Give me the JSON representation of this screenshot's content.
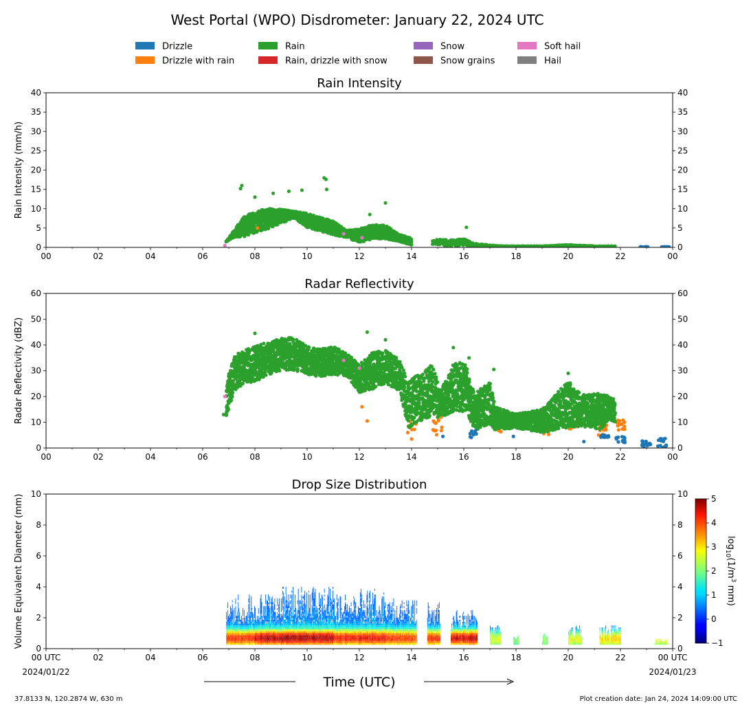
{
  "figure": {
    "title": "West Portal (WPO) Disdrometer: January 22, 2024 UTC",
    "xlabel": "Time (UTC)",
    "footer_left": "37.8133 N, 120.2874 W, 630 m",
    "footer_right": "Plot creation date: Jan 24, 2024 14:09:00 UTC",
    "x_tick_labels": [
      "00",
      "02",
      "04",
      "06",
      "08",
      "10",
      "12",
      "14",
      "16",
      "18",
      "20",
      "22",
      "00"
    ],
    "x_tick_labels_bottom": [
      "00 UTC",
      "02",
      "04",
      "06",
      "08",
      "10",
      "12",
      "14",
      "16",
      "18",
      "20",
      "22",
      "00 UTC"
    ],
    "x_start_date": "2024/01/22",
    "x_end_date": "2024/01/23"
  },
  "legend": {
    "placement": "top-center",
    "items": [
      {
        "label": "Drizzle",
        "color": "#1f77b4"
      },
      {
        "label": "Drizzle with rain",
        "color": "#ff7f0e"
      },
      {
        "label": "Rain",
        "color": "#2ca02c"
      },
      {
        "label": "Rain, drizzle with snow",
        "color": "#d62728"
      },
      {
        "label": "Snow",
        "color": "#9467bd"
      },
      {
        "label": "Snow grains",
        "color": "#8c564b"
      },
      {
        "label": "Soft hail",
        "color": "#e377c2"
      },
      {
        "label": "Hail",
        "color": "#7f7f7f"
      }
    ]
  },
  "colorbar": {
    "label": "log10(1/m3 mm)",
    "range": [
      -1,
      5
    ],
    "tick_labels": [
      "5",
      "4",
      "3",
      "2",
      "1",
      "0",
      "−1"
    ],
    "colormap": "jet"
  },
  "chart_data": [
    {
      "type": "scatter",
      "title": "Rain Intensity",
      "ylabel": "Rain Intensity (mm/h)",
      "xlim": [
        0,
        24
      ],
      "ylim": [
        0,
        40
      ],
      "y_tick_labels": [
        "0",
        "5",
        "10",
        "15",
        "20",
        "25",
        "30",
        "35",
        "40"
      ],
      "envelope": {
        "rain": [
          [
            6.9,
            1.5,
            1.5
          ],
          [
            7.2,
            3,
            4
          ],
          [
            7.6,
            4,
            7
          ],
          [
            8.0,
            5,
            8
          ],
          [
            8.5,
            6,
            9
          ],
          [
            9.0,
            7,
            9
          ],
          [
            9.5,
            8,
            9
          ],
          [
            10.0,
            6,
            8
          ],
          [
            10.5,
            5,
            7
          ],
          [
            11.0,
            4,
            6
          ],
          [
            11.5,
            3,
            4
          ],
          [
            12.0,
            2,
            4
          ],
          [
            12.5,
            3,
            5
          ],
          [
            13.0,
            3,
            5
          ],
          [
            13.5,
            2,
            3
          ],
          [
            14.0,
            1,
            2
          ]
        ],
        "rain_later": [
          [
            14.8,
            0.8,
            1.5
          ],
          [
            15.0,
            1,
            1.8
          ],
          [
            15.6,
            0.5,
            1.5
          ],
          [
            16.0,
            1,
            2
          ],
          [
            16.3,
            0.5,
            1
          ],
          [
            17.0,
            0.3,
            0.5
          ],
          [
            17.5,
            0.2,
            0.3
          ],
          [
            18.2,
            0.2,
            0.3
          ],
          [
            19.0,
            0.2,
            0.3
          ],
          [
            20.0,
            0.4,
            0.6
          ],
          [
            20.5,
            0.2,
            0.4
          ],
          [
            21.2,
            0.2,
            0.3
          ],
          [
            21.8,
            0.2,
            0.3
          ]
        ],
        "drizzle": [
          [
            22.9,
            0.1,
            0.1
          ],
          [
            23.7,
            0.1,
            0.1
          ]
        ]
      },
      "outliers": [
        {
          "x": 7.5,
          "y": 16,
          "cls": "Rain"
        },
        {
          "x": 7.45,
          "y": 15.2,
          "cls": "Rain"
        },
        {
          "x": 8.0,
          "y": 13,
          "cls": "Rain"
        },
        {
          "x": 8.7,
          "y": 14,
          "cls": "Rain"
        },
        {
          "x": 9.3,
          "y": 14.5,
          "cls": "Rain"
        },
        {
          "x": 9.8,
          "y": 14.8,
          "cls": "Rain"
        },
        {
          "x": 10.65,
          "y": 18,
          "cls": "Rain"
        },
        {
          "x": 10.72,
          "y": 17.6,
          "cls": "Rain"
        },
        {
          "x": 10.75,
          "y": 15,
          "cls": "Rain"
        },
        {
          "x": 12.4,
          "y": 8.5,
          "cls": "Rain"
        },
        {
          "x": 13.0,
          "y": 11.5,
          "cls": "Rain"
        },
        {
          "x": 16.1,
          "y": 5.2,
          "cls": "Rain"
        },
        {
          "x": 6.85,
          "y": 0.5,
          "cls": "Soft hail"
        },
        {
          "x": 11.4,
          "y": 3.5,
          "cls": "Soft hail"
        },
        {
          "x": 12.1,
          "y": 2.5,
          "cls": "Soft hail"
        },
        {
          "x": 8.1,
          "y": 5,
          "cls": "Drizzle with rain"
        }
      ]
    },
    {
      "type": "scatter",
      "title": "Radar Reflectivity",
      "ylabel": "Radar Reflectivity (dBZ)",
      "xlim": [
        0,
        24
      ],
      "ylim": [
        0,
        60
      ],
      "y_tick_labels": [
        "0",
        "10",
        "20",
        "30",
        "40",
        "50",
        "60"
      ],
      "envelope": {
        "rain": [
          [
            6.9,
            15,
            22
          ],
          [
            7.2,
            25,
            33
          ],
          [
            7.6,
            28,
            35
          ],
          [
            8.0,
            29,
            37
          ],
          [
            8.5,
            31,
            38
          ],
          [
            9.0,
            33,
            40
          ],
          [
            9.5,
            33,
            40
          ],
          [
            10.0,
            31,
            37
          ],
          [
            10.5,
            30,
            36
          ],
          [
            11.0,
            31,
            37
          ],
          [
            11.5,
            30,
            35
          ],
          [
            12.0,
            24,
            30
          ],
          [
            12.5,
            26,
            34
          ],
          [
            13.0,
            28,
            35
          ],
          [
            13.5,
            25,
            32
          ],
          [
            13.9,
            12,
            22
          ],
          [
            14.8,
            17,
            28
          ],
          [
            15.1,
            14,
            20
          ],
          [
            15.7,
            19,
            30
          ],
          [
            16.1,
            18,
            28
          ],
          [
            16.4,
            10,
            18
          ],
          [
            17.0,
            13,
            22
          ],
          [
            17.2,
            9,
            14
          ],
          [
            18.0,
            9,
            12
          ],
          [
            19.0,
            8,
            13
          ],
          [
            20.0,
            12,
            22
          ],
          [
            20.5,
            11,
            18
          ],
          [
            21.2,
            10,
            18
          ],
          [
            21.6,
            13,
            18
          ],
          [
            21.8,
            12,
            17
          ]
        ],
        "drizzle_with_rain": [
          [
            16.45,
            8,
            18
          ],
          [
            17.3,
            6,
            12
          ],
          [
            19.1,
            5,
            9
          ],
          [
            21.3,
            5,
            10
          ],
          [
            22.0,
            6,
            12
          ],
          [
            14.0,
            5,
            14
          ],
          [
            15.0,
            5,
            13
          ],
          [
            20.2,
            7,
            12
          ]
        ],
        "drizzle": [
          [
            16.35,
            4,
            8
          ],
          [
            21.4,
            4,
            5
          ],
          [
            22.0,
            2,
            5
          ],
          [
            23.0,
            0,
            3
          ],
          [
            23.6,
            0,
            4
          ]
        ]
      },
      "outliers": [
        {
          "x": 8.0,
          "y": 44.5,
          "cls": "Rain"
        },
        {
          "x": 12.3,
          "y": 45,
          "cls": "Rain"
        },
        {
          "x": 13.0,
          "y": 42,
          "cls": "Rain"
        },
        {
          "x": 15.6,
          "y": 39,
          "cls": "Rain"
        },
        {
          "x": 16.2,
          "y": 35,
          "cls": "Rain"
        },
        {
          "x": 17.15,
          "y": 30.5,
          "cls": "Rain"
        },
        {
          "x": 20.0,
          "y": 29,
          "cls": "Rain"
        },
        {
          "x": 6.8,
          "y": 13,
          "cls": "Rain"
        },
        {
          "x": 6.85,
          "y": 20,
          "cls": "Soft hail"
        },
        {
          "x": 11.4,
          "y": 34,
          "cls": "Soft hail"
        },
        {
          "x": 12.0,
          "y": 31,
          "cls": "Soft hail"
        },
        {
          "x": 12.3,
          "y": 10.5,
          "cls": "Drizzle with rain"
        },
        {
          "x": 12.1,
          "y": 16,
          "cls": "Drizzle with rain"
        },
        {
          "x": 14.0,
          "y": 3.5,
          "cls": "Drizzle with rain"
        },
        {
          "x": 15.2,
          "y": 4.5,
          "cls": "Drizzle"
        },
        {
          "x": 17.9,
          "y": 4.5,
          "cls": "Drizzle"
        },
        {
          "x": 20.6,
          "y": 2.5,
          "cls": "Drizzle"
        }
      ]
    },
    {
      "type": "heatmap",
      "title": "Drop Size Distribution",
      "ylabel": "Volume Equivalent Diameter (mm)",
      "xlim": [
        0,
        24
      ],
      "ylim": [
        0,
        10
      ],
      "y_tick_labels": [
        "0",
        "2",
        "4",
        "6",
        "8",
        "10"
      ],
      "x_tick_labels_hidden_note": "bottom panel uses figure.x_tick_labels_bottom",
      "segments": [
        {
          "x0": 6.9,
          "x1": 8.0,
          "top": 3.5,
          "peak": 3.3
        },
        {
          "x0": 8.0,
          "x1": 9.0,
          "top": 3.5,
          "peak": 3.8
        },
        {
          "x0": 9.0,
          "x1": 10.0,
          "top": 4.0,
          "peak": 3.9
        },
        {
          "x0": 10.0,
          "x1": 11.0,
          "top": 4.0,
          "peak": 3.8
        },
        {
          "x0": 11.0,
          "x1": 12.0,
          "top": 3.5,
          "peak": 3.4
        },
        {
          "x0": 12.0,
          "x1": 13.0,
          "top": 3.8,
          "peak": 3.5
        },
        {
          "x0": 13.0,
          "x1": 14.2,
          "top": 3.3,
          "peak": 3.2
        },
        {
          "x0": 14.6,
          "x1": 15.1,
          "top": 3.0,
          "peak": 3.3
        },
        {
          "x0": 15.5,
          "x1": 16.5,
          "top": 2.5,
          "peak": 3.8
        },
        {
          "x0": 17.0,
          "x1": 17.4,
          "top": 1.5,
          "peak": 2.0
        },
        {
          "x0": 17.9,
          "x1": 18.1,
          "top": 1.0,
          "peak": 1.8
        },
        {
          "x0": 19.0,
          "x1": 19.2,
          "top": 1.0,
          "peak": 1.8
        },
        {
          "x0": 20.0,
          "x1": 20.5,
          "top": 1.5,
          "peak": 2.2
        },
        {
          "x0": 21.2,
          "x1": 22.0,
          "top": 1.5,
          "peak": 2.5
        },
        {
          "x0": 23.3,
          "x1": 23.8,
          "top": 0.6,
          "peak": 2.8
        }
      ]
    }
  ]
}
